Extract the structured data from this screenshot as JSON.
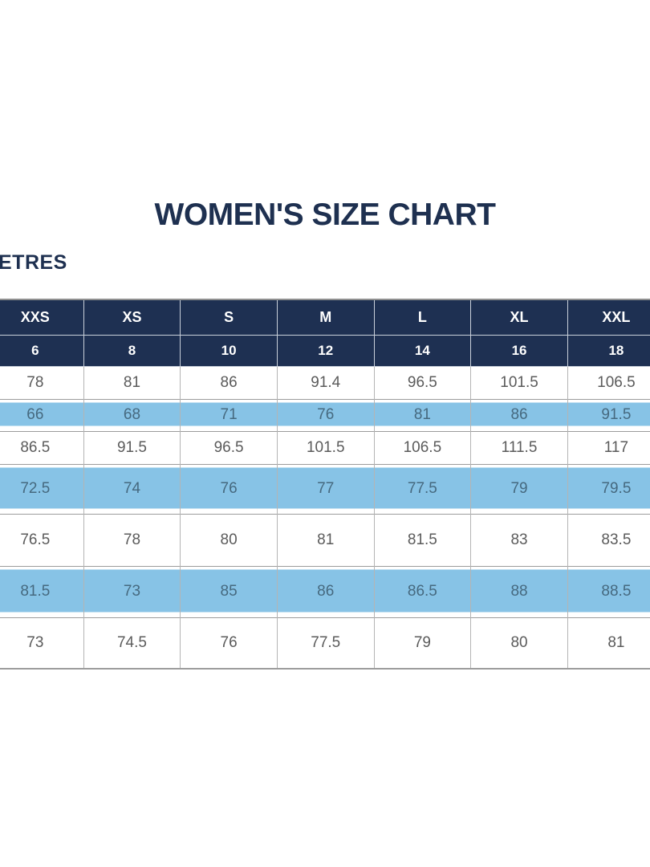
{
  "header": {
    "title": "WOMEN'S SIZE CHART",
    "unit_label": "ETRES"
  },
  "chart_data": {
    "type": "table",
    "title": "WOMEN'S SIZE CHART",
    "unit_label_visible": "ETRES",
    "size_headers": [
      "XXS",
      "XS",
      "S",
      "M",
      "L",
      "XL",
      "XXL"
    ],
    "numeric_sizes": [
      "6",
      "8",
      "10",
      "12",
      "14",
      "16",
      "18"
    ],
    "rows": [
      {
        "highlight": false,
        "values": [
          "78",
          "81",
          "86",
          "91.4",
          "96.5",
          "101.5",
          "106.5"
        ]
      },
      {
        "highlight": true,
        "values": [
          "66",
          "68",
          "71",
          "76",
          "81",
          "86",
          "91.5"
        ]
      },
      {
        "highlight": false,
        "values": [
          "86.5",
          "91.5",
          "96.5",
          "101.5",
          "106.5",
          "111.5",
          "117"
        ]
      },
      {
        "highlight": true,
        "values": [
          "72.5",
          "74",
          "76",
          "77",
          "77.5",
          "79",
          "79.5"
        ]
      },
      {
        "highlight": false,
        "values": [
          "76.5",
          "78",
          "80",
          "81",
          "81.5",
          "83",
          "83.5"
        ]
      },
      {
        "highlight": true,
        "values": [
          "81.5",
          "73",
          "85",
          "86",
          "86.5",
          "88",
          "88.5"
        ]
      },
      {
        "highlight": false,
        "values": [
          "73",
          "74.5",
          "76",
          "77.5",
          "79",
          "80",
          "81"
        ]
      }
    ],
    "layout": {
      "columns_cut_off": "first and last columns partially cropped at image edges",
      "highlight_pattern": "alternating light-blue rows (2nd, 4th, 6th data rows)"
    },
    "colors": {
      "header_bg": "#1e3052",
      "highlight_bg": "#87c3e6",
      "navy_text": "#1e3050",
      "body_text": "#5b5b5b",
      "highlight_text": "#46697f"
    }
  }
}
